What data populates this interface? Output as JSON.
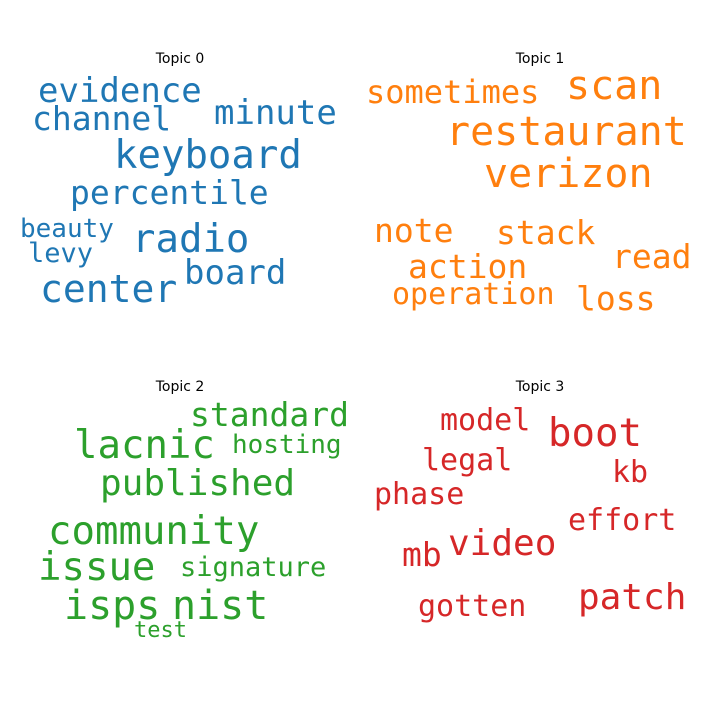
{
  "topics": [
    {
      "title": "Topic 0",
      "color": "#1f77b4",
      "words": [
        "evidence",
        "minute",
        "channel",
        "keyboard",
        "percentile",
        "beauty",
        "radio",
        "levy",
        "board",
        "center"
      ]
    },
    {
      "title": "Topic 1",
      "color": "#ff7f0e",
      "words": [
        "scan",
        "sometimes",
        "restaurant",
        "verizon",
        "note",
        "stack",
        "read",
        "action",
        "operation",
        "loss"
      ]
    },
    {
      "title": "Topic 2",
      "color": "#2ca02c",
      "words": [
        "standard",
        "lacnic",
        "hosting",
        "published",
        "community",
        "issue",
        "signature",
        "isps",
        "nist",
        "test"
      ]
    },
    {
      "title": "Topic 3",
      "color": "#d62728",
      "words": [
        "model",
        "boot",
        "legal",
        "kb",
        "phase",
        "effort",
        "mb",
        "video",
        "gotten",
        "patch"
      ]
    }
  ]
}
